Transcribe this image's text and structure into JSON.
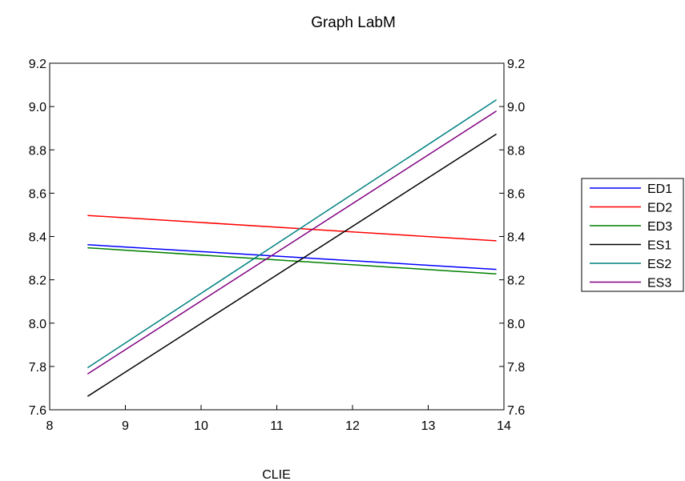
{
  "chart_data": {
    "type": "line",
    "title": "Graph LabM",
    "xlabel": "CLIE",
    "ylabel": "",
    "xlim": [
      8,
      14
    ],
    "ylim": [
      7.6,
      9.2
    ],
    "x_ticks": [
      "8",
      "9",
      "10",
      "11",
      "12",
      "13",
      "14"
    ],
    "y_ticks": [
      "7.6",
      "7.8",
      "8.0",
      "8.2",
      "8.4",
      "8.6",
      "8.8",
      "9.0",
      "9.2"
    ],
    "grid": false,
    "legend_position": "right",
    "x": [
      8.5,
      13.9
    ],
    "series": [
      {
        "name": "ED1",
        "color": "#0000ff",
        "values": [
          8.362,
          8.248
        ]
      },
      {
        "name": "ED2",
        "color": "#ff0000",
        "values": [
          8.497,
          8.38
        ]
      },
      {
        "name": "ED3",
        "color": "#008000",
        "values": [
          8.348,
          8.227
        ]
      },
      {
        "name": "ES1",
        "color": "#000000",
        "values": [
          7.662,
          8.873
        ]
      },
      {
        "name": "ES2",
        "color": "#008080",
        "values": [
          7.794,
          9.031
        ]
      },
      {
        "name": "ES3",
        "color": "#800080",
        "values": [
          7.765,
          8.979
        ]
      }
    ]
  }
}
